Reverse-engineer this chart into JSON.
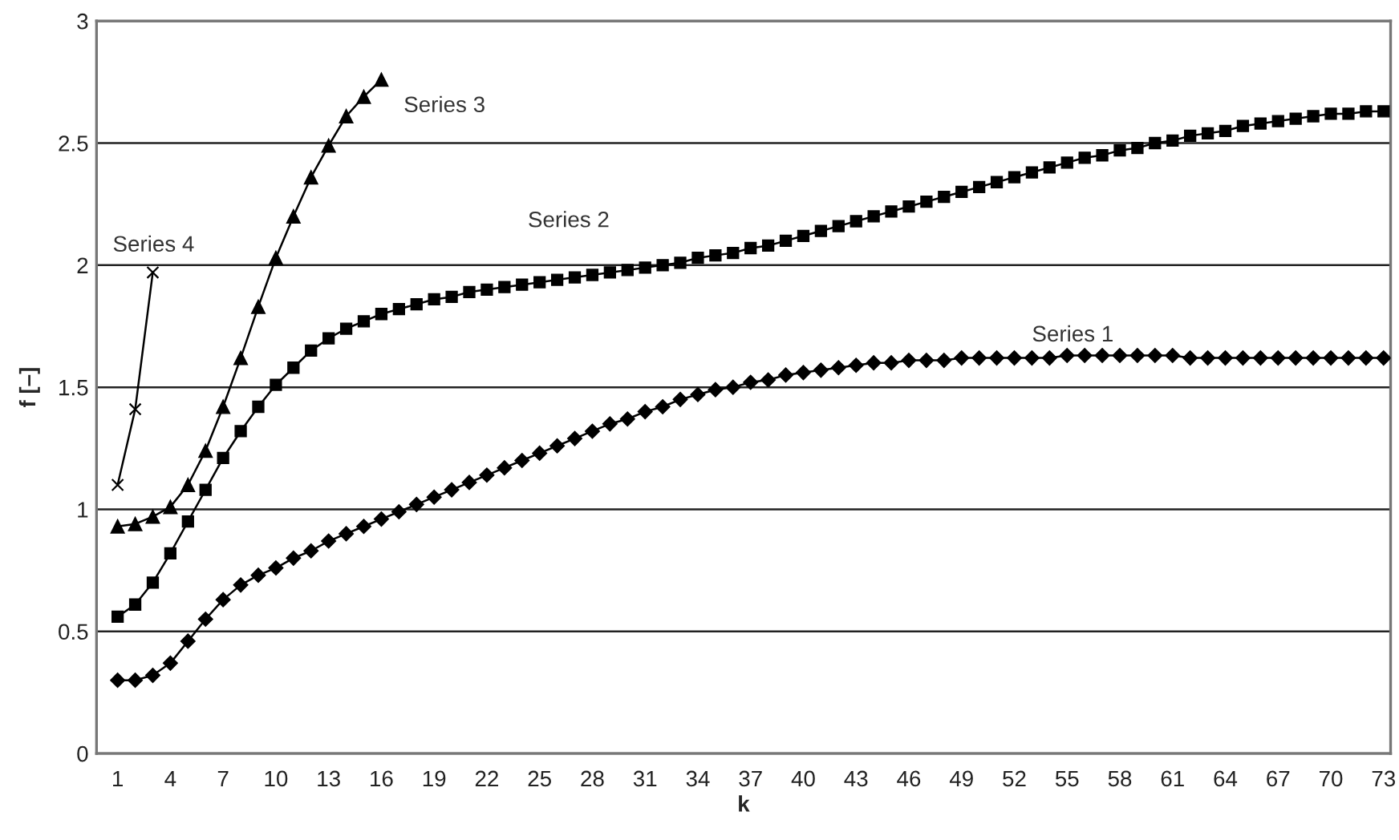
{
  "chart_data": {
    "type": "line",
    "xlabel": "k",
    "ylabel": "f [–]",
    "categories": [
      "1",
      null,
      null,
      "4",
      null,
      null,
      "7",
      null,
      null,
      "10",
      null,
      null,
      "13",
      null,
      null,
      "16",
      null,
      null,
      "19",
      null,
      null,
      "22",
      null,
      null,
      "25",
      null,
      null,
      "28",
      null,
      null,
      "31",
      null,
      null,
      "34",
      null,
      null,
      "37",
      null,
      null,
      "40",
      null,
      null,
      "43",
      null,
      null,
      "46",
      null,
      null,
      "49",
      null,
      null,
      "52",
      null,
      null,
      "55",
      null,
      null,
      "58",
      null,
      null,
      "61",
      null,
      null,
      "64",
      null,
      null,
      "67",
      null,
      null,
      "70",
      null,
      null,
      "73"
    ],
    "series": [
      {
        "name": "Series 1",
        "color": "#000000",
        "marker": "diamond",
        "values": [
          0.3,
          0.3,
          0.32,
          0.37,
          0.46,
          0.55,
          0.63,
          0.69,
          0.73,
          0.76,
          0.8,
          0.83,
          0.87,
          0.9,
          0.93,
          0.96,
          0.99,
          1.02,
          1.05,
          1.08,
          1.11,
          1.14,
          1.17,
          1.2,
          1.23,
          1.26,
          1.29,
          1.32,
          1.35,
          1.37,
          1.4,
          1.42,
          1.45,
          1.47,
          1.49,
          1.5,
          1.52,
          1.53,
          1.55,
          1.56,
          1.57,
          1.58,
          1.59,
          1.6,
          1.6,
          1.61,
          1.61,
          1.61,
          1.62,
          1.62,
          1.62,
          1.62,
          1.62,
          1.62,
          1.63,
          1.63,
          1.63,
          1.63,
          1.63,
          1.63,
          1.63,
          1.62,
          1.62,
          1.62,
          1.62,
          1.62,
          1.62,
          1.62,
          1.62,
          1.62,
          1.62,
          1.62,
          1.62
        ]
      },
      {
        "name": "Series 2",
        "color": "#000000",
        "marker": "square",
        "values": [
          0.56,
          0.61,
          0.7,
          0.82,
          0.95,
          1.08,
          1.21,
          1.32,
          1.42,
          1.51,
          1.58,
          1.65,
          1.7,
          1.74,
          1.77,
          1.8,
          1.82,
          1.84,
          1.86,
          1.87,
          1.89,
          1.9,
          1.91,
          1.92,
          1.93,
          1.94,
          1.95,
          1.96,
          1.97,
          1.98,
          1.99,
          2.0,
          2.01,
          2.03,
          2.04,
          2.05,
          2.07,
          2.08,
          2.1,
          2.12,
          2.14,
          2.16,
          2.18,
          2.2,
          2.22,
          2.24,
          2.26,
          2.28,
          2.3,
          2.32,
          2.34,
          2.36,
          2.38,
          2.4,
          2.42,
          2.44,
          2.45,
          2.47,
          2.48,
          2.5,
          2.51,
          2.53,
          2.54,
          2.55,
          2.57,
          2.58,
          2.59,
          2.6,
          2.61,
          2.62,
          2.62,
          2.63,
          2.63
        ]
      },
      {
        "name": "Series 3",
        "color": "#000000",
        "marker": "triangle",
        "values": [
          0.93,
          0.94,
          0.97,
          1.01,
          1.1,
          1.24,
          1.42,
          1.62,
          1.83,
          2.03,
          2.2,
          2.36,
          2.49,
          2.61,
          2.69,
          2.76,
          null,
          null,
          null,
          null,
          null,
          null,
          null,
          null,
          null,
          null,
          null,
          null,
          null,
          null,
          null,
          null,
          null,
          null,
          null,
          null,
          null,
          null,
          null,
          null,
          null,
          null,
          null,
          null,
          null,
          null,
          null,
          null,
          null,
          null,
          null,
          null,
          null,
          null,
          null,
          null,
          null,
          null,
          null,
          null,
          null,
          null,
          null,
          null,
          null,
          null,
          null,
          null,
          null,
          null,
          null,
          null,
          null
        ]
      },
      {
        "name": "Series 4",
        "color": "#000000",
        "marker": "cross",
        "values": [
          1.1,
          1.41,
          1.97,
          null,
          null,
          null,
          null,
          null,
          null,
          null,
          null,
          null,
          null,
          null,
          null,
          null,
          null,
          null,
          null,
          null,
          null,
          null,
          null,
          null,
          null,
          null,
          null,
          null,
          null,
          null,
          null,
          null,
          null,
          null,
          null,
          null,
          null,
          null,
          null,
          null,
          null,
          null,
          null,
          null,
          null,
          null,
          null,
          null,
          null,
          null,
          null,
          null,
          null,
          null,
          null,
          null,
          null,
          null,
          null,
          null,
          null,
          null,
          null,
          null,
          null,
          null,
          null,
          null,
          null,
          null,
          null,
          null,
          null
        ]
      }
    ],
    "ylim": [
      0,
      3
    ],
    "yticks": [
      0,
      0.5,
      1,
      1.5,
      2,
      2.5,
      3
    ],
    "grid": "y",
    "legend": false
  }
}
